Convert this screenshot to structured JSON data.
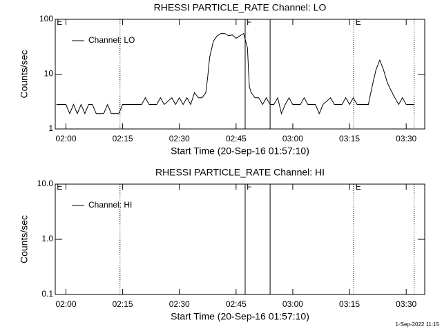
{
  "chart_data": [
    {
      "type": "line",
      "title": "RHESSI PARTICLE_RATE Channel: LO",
      "xlabel": "Start Time (20-Sep-16 01:57:10)",
      "ylabel": "Counts/sec",
      "log_y": true,
      "legend": "upper left",
      "xlim": [
        117.17,
        214.9
      ],
      "ylim": [
        1,
        100
      ],
      "xticks": [
        {
          "value": 120,
          "label": "02:00"
        },
        {
          "value": 135,
          "label": "02:15"
        },
        {
          "value": 150,
          "label": "02:30"
        },
        {
          "value": 165,
          "label": "02:45"
        },
        {
          "value": 180,
          "label": "03:00"
        },
        {
          "value": 195,
          "label": "03:15"
        },
        {
          "value": 210,
          "label": "03:30"
        }
      ],
      "yticks": [
        1,
        10,
        100
      ],
      "vlines": [
        {
          "x": 134.3,
          "style": "dotted"
        },
        {
          "x": 167.4,
          "style": "solid"
        },
        {
          "x": 174,
          "style": "solid"
        },
        {
          "x": 196.1,
          "style": "dotted"
        },
        {
          "x": 212.1,
          "style": "dotted"
        }
      ],
      "flags": [
        {
          "x": 117.4,
          "text": "E"
        },
        {
          "x": 167.6,
          "text": "F"
        },
        {
          "x": 196.4,
          "text": "E"
        }
      ],
      "x": [
        117.5,
        120,
        121,
        122,
        123,
        124,
        125,
        126,
        127,
        128,
        129,
        130,
        131,
        132,
        133,
        134,
        135,
        138,
        140,
        141,
        142,
        144,
        145,
        146,
        148,
        149,
        150,
        151,
        152,
        153,
        154,
        155,
        156,
        157,
        157.5,
        158,
        159,
        160,
        161,
        162,
        163,
        164,
        165,
        166,
        167,
        168,
        168.5,
        169,
        170,
        171,
        172,
        173,
        174,
        175,
        176,
        177,
        178,
        179,
        180,
        182,
        183,
        184,
        186,
        187,
        188,
        190,
        191,
        193,
        194,
        195,
        196,
        197,
        200,
        201,
        202,
        203,
        204,
        205,
        206,
        207,
        208,
        209,
        210,
        212
      ],
      "series": [
        {
          "name": "Channel: LO",
          "color": "#000000",
          "values": [
            2.8,
            2.8,
            1.9,
            2.8,
            1.9,
            2.8,
            1.9,
            2.8,
            2.8,
            1.9,
            1.9,
            1.9,
            2.8,
            1.9,
            1.9,
            1.9,
            2.8,
            2.8,
            2.8,
            3.7,
            2.8,
            2.8,
            3.7,
            2.8,
            3.7,
            2.8,
            3.7,
            2.8,
            3.7,
            2.8,
            4.6,
            3.7,
            3.7,
            4.6,
            9,
            20,
            40,
            50,
            55,
            55,
            50,
            52,
            45,
            50,
            55,
            30,
            6,
            4.6,
            3.7,
            3.7,
            2.8,
            3.7,
            2.8,
            2.8,
            3.7,
            1.9,
            2.8,
            3.7,
            2.8,
            2.8,
            3.7,
            2.8,
            2.8,
            1.9,
            2.8,
            3.7,
            2.8,
            2.8,
            3.7,
            2.8,
            3.7,
            2.8,
            2.8,
            6,
            12,
            18,
            12,
            7,
            5,
            3.7,
            2.8,
            3.7,
            2.8,
            2.8
          ]
        }
      ]
    },
    {
      "type": "line",
      "title": "RHESSI PARTICLE_RATE Channel: HI",
      "xlabel": "Start Time (20-Sep-16 01:57:10)",
      "ylabel": "Counts/sec",
      "log_y": true,
      "legend": "upper left",
      "xlim": [
        117.17,
        214.9
      ],
      "ylim": [
        0.1,
        10
      ],
      "xticks": [
        {
          "value": 120,
          "label": "02:00"
        },
        {
          "value": 135,
          "label": "02:15"
        },
        {
          "value": 150,
          "label": "02:30"
        },
        {
          "value": 165,
          "label": "02:45"
        },
        {
          "value": 180,
          "label": "03:00"
        },
        {
          "value": 195,
          "label": "03:15"
        },
        {
          "value": 210,
          "label": "03:30"
        }
      ],
      "yticks": [
        0.1,
        {
          "value": 1,
          "label": "1.0"
        },
        {
          "value": 10,
          "label": "10.0"
        }
      ],
      "vlines": [
        {
          "x": 134.3,
          "style": "dotted"
        },
        {
          "x": 167.4,
          "style": "solid"
        },
        {
          "x": 174,
          "style": "solid"
        },
        {
          "x": 196.1,
          "style": "dotted"
        },
        {
          "x": 212.1,
          "style": "dotted"
        }
      ],
      "flags": [
        {
          "x": 117.4,
          "text": "E"
        },
        {
          "x": 167.6,
          "text": "F"
        },
        {
          "x": 196.4,
          "text": "E"
        }
      ],
      "x": [],
      "series": [
        {
          "name": "Channel: HI",
          "color": "#000000",
          "values": []
        }
      ]
    }
  ],
  "footer": "1-Sep-2022 11:15"
}
